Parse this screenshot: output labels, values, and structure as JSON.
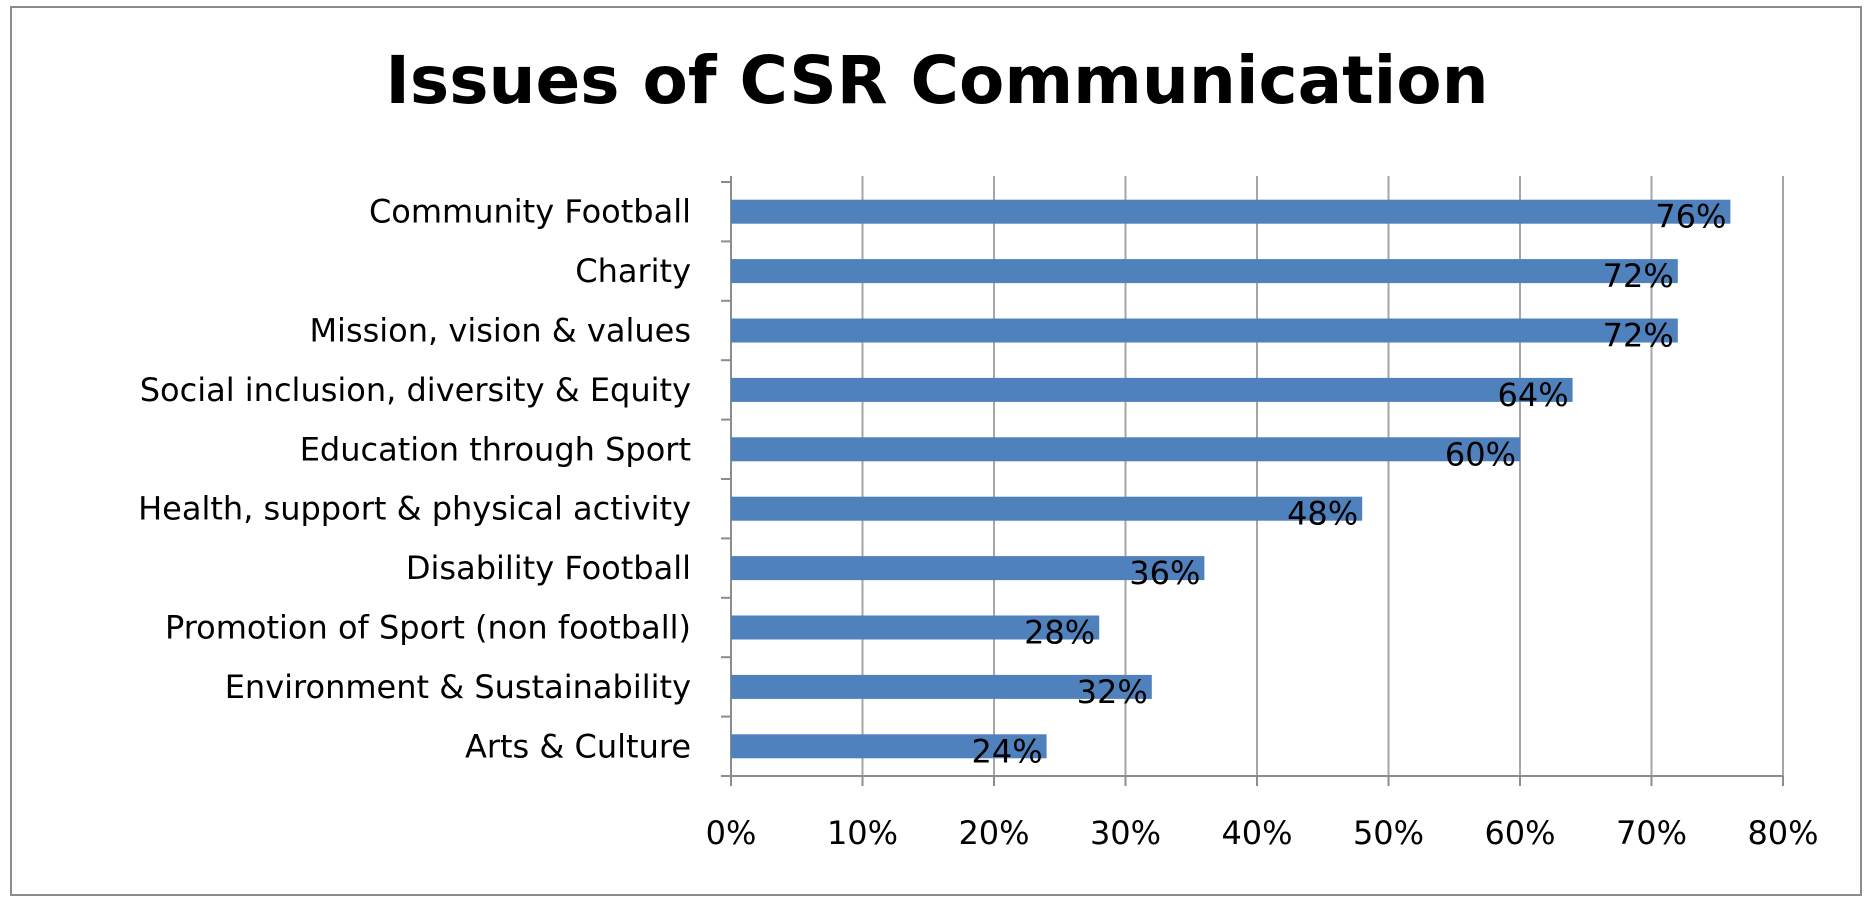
{
  "chart_data": {
    "type": "bar",
    "orientation": "horizontal",
    "title": "Issues of CSR Communication",
    "xlabel": "",
    "ylabel": "",
    "categories": [
      "Community Football",
      "Charity",
      "Mission, vision & values",
      "Social inclusion, diversity & Equity",
      "Education through Sport",
      "Health, support & physical activity",
      "Disability Football",
      "Promotion of Sport (non football)",
      "Environment & Sustainability",
      "Arts & Culture"
    ],
    "values": [
      76,
      72,
      72,
      64,
      60,
      48,
      36,
      28,
      32,
      24
    ],
    "value_labels": [
      "76%",
      "72%",
      "72%",
      "64%",
      "60%",
      "48%",
      "36%",
      "28%",
      "32%",
      "24%"
    ],
    "xlim": [
      0,
      80
    ],
    "x_ticks": [
      0,
      10,
      20,
      30,
      40,
      50,
      60,
      70,
      80
    ],
    "x_tick_labels": [
      "0%",
      "10%",
      "20%",
      "30%",
      "40%",
      "50%",
      "60%",
      "70%",
      "80%"
    ],
    "grid": "vertical",
    "legend": "none",
    "bar_color": "#4f81bd",
    "grid_color": "#a6a6a6",
    "axis_color": "#8c8c8c"
  }
}
